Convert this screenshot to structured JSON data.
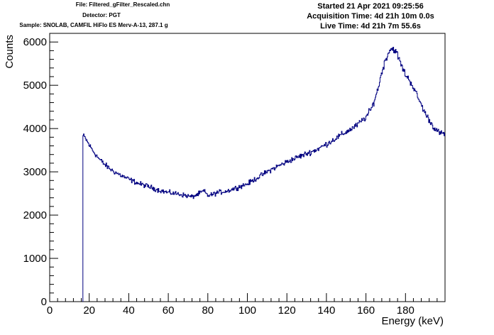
{
  "header": {
    "file": "File: Filtered_gFilter_Rescaled.chn",
    "detector": "Detector: PGT",
    "sample": "Sample: SNOLAB, CAMFIL HiFlo ES Merv-A-13, 287.1 g",
    "started": "Started 21 Apr 2021 09:25:56",
    "acquisition": "Acquisition Time: 4d 21h 10m 0.0s",
    "live": "Live Time: 4d 21h 7m 55.6s"
  },
  "chart_data": {
    "type": "line",
    "xlabel": "Energy (keV)",
    "ylabel": "Counts",
    "xlim": [
      0,
      200
    ],
    "ylim": [
      0,
      6200
    ],
    "x_ticks": [
      0,
      20,
      40,
      60,
      80,
      100,
      120,
      140,
      160,
      180
    ],
    "y_ticks": [
      0,
      1000,
      2000,
      3000,
      4000,
      5000,
      6000
    ],
    "grid": false,
    "series_color": "#000080",
    "step": 0.3,
    "threshold_keV": 16.8,
    "x": [
      16.8,
      18,
      20,
      22,
      25,
      28,
      32,
      36,
      40,
      45,
      50,
      55,
      60,
      65,
      70,
      72,
      75,
      78,
      80,
      82,
      85,
      90,
      95,
      100,
      105,
      110,
      115,
      120,
      125,
      130,
      135,
      140,
      145,
      150,
      155,
      160,
      163,
      166,
      168,
      170,
      172,
      174,
      176,
      178,
      180,
      183,
      186,
      190,
      194,
      197,
      200
    ],
    "values": [
      3840,
      3780,
      3620,
      3480,
      3300,
      3160,
      3020,
      2920,
      2830,
      2730,
      2660,
      2580,
      2520,
      2490,
      2440,
      2420,
      2480,
      2560,
      2450,
      2470,
      2520,
      2560,
      2640,
      2720,
      2860,
      3000,
      3120,
      3230,
      3330,
      3420,
      3510,
      3640,
      3780,
      3920,
      4060,
      4260,
      4480,
      4900,
      5300,
      5600,
      5820,
      5850,
      5700,
      5450,
      5250,
      5050,
      4750,
      4350,
      4050,
      3900,
      3870
    ]
  }
}
